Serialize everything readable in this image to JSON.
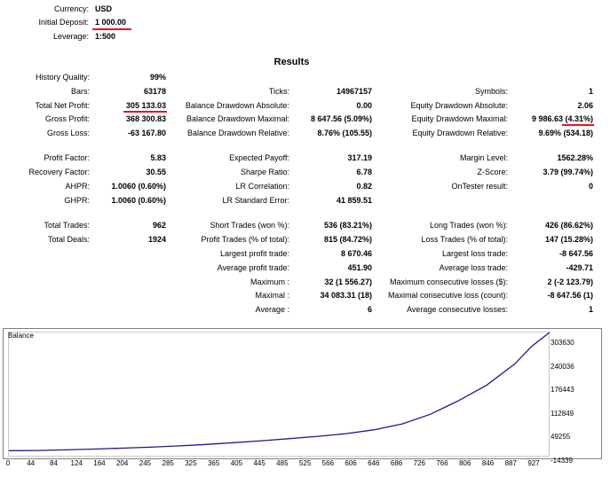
{
  "header": {
    "currency_label": "Currency:",
    "currency_value": "USD",
    "deposit_label": "Initial Deposit:",
    "deposit_value": "1 000.00",
    "leverage_label": "Leverage:",
    "leverage_value": "1:500"
  },
  "results_title": "Results",
  "col1": [
    {
      "label": "History Quality:",
      "value": "99%"
    },
    {
      "label": "Bars:",
      "value": "63178"
    },
    {
      "label": "Total Net Profit:",
      "value": "305 133.03"
    },
    {
      "label": "Gross Profit:",
      "value": "368 300.83"
    },
    {
      "label": "Gross Loss:",
      "value": "-63 167.80"
    },
    {
      "label": "Profit Factor:",
      "value": "5.83"
    },
    {
      "label": "Recovery Factor:",
      "value": "30.55"
    },
    {
      "label": "AHPR:",
      "value": "1.0060 (0.60%)"
    },
    {
      "label": "GHPR:",
      "value": "1.0060 (0.60%)"
    },
    {
      "label": "Total Trades:",
      "value": "962"
    },
    {
      "label": "Total Deals:",
      "value": "1924"
    }
  ],
  "col2": [
    {
      "label": "Ticks:",
      "value": "14967157"
    },
    {
      "label": "Balance Drawdown Absolute:",
      "value": "0.00"
    },
    {
      "label": "Balance Drawdown Maximal:",
      "value": "8 647.56 (5.09%)"
    },
    {
      "label": "Balance Drawdown Relative:",
      "value": "8.76% (105.55)"
    },
    {
      "label": "Expected Payoff:",
      "value": "317.19"
    },
    {
      "label": "Sharpe Ratio:",
      "value": "6.78"
    },
    {
      "label": "LR Correlation:",
      "value": "0.82"
    },
    {
      "label": "LR Standard Error:",
      "value": "41 859.51"
    },
    {
      "label": "Short Trades (won %):",
      "value": "536 (83.21%)"
    },
    {
      "label": "Profit Trades (% of total):",
      "value": "815 (84.72%)"
    },
    {
      "label": "Largest profit trade:",
      "value": "8 670.46"
    },
    {
      "label": "Average profit trade:",
      "value": "451.90"
    },
    {
      "label": "Maximum :",
      "value": "32 (1 556.27)"
    },
    {
      "label": "Maximal :",
      "value": "34 083.31 (18)"
    },
    {
      "label": "Average :",
      "value": "6"
    }
  ],
  "col3": [
    {
      "label": "Symbols:",
      "value": "1"
    },
    {
      "label": "Equity Drawdown Absolute:",
      "value": "2.06"
    },
    {
      "label": "Equity Drawdown Maximal:",
      "value": "9 986.63 (4.31%)"
    },
    {
      "label": "Equity Drawdown Relative:",
      "value": "9.69% (534.18)"
    },
    {
      "label": "Margin Level:",
      "value": "1562.28%"
    },
    {
      "label": "Z-Score:",
      "value": "3.79 (99.74%)"
    },
    {
      "label": "OnTester result:",
      "value": "0"
    },
    {
      "label": "Long Trades (won %):",
      "value": "426 (86.62%)"
    },
    {
      "label": "Loss Trades (% of total):",
      "value": "147 (15.28%)"
    },
    {
      "label": "Largest loss trade:",
      "value": "-8 647.56"
    },
    {
      "label": "Average loss trade:",
      "value": "-429.71"
    },
    {
      "label": "Maximum consecutive losses ($):",
      "value": "2 (-2 123.79)"
    },
    {
      "label": "Maximal consecutive loss (count):",
      "value": "-8 647.56 (1)"
    },
    {
      "label": "Average consecutive losses:",
      "value": "1"
    }
  ],
  "chart_data": {
    "type": "line",
    "title": "Balance",
    "xlabel": "",
    "ylabel": "",
    "xlim": [
      0,
      962
    ],
    "ylim": [
      -14339,
      303630
    ],
    "yticks": [
      "303630",
      "240036",
      "176443",
      "112849",
      "49255",
      "-14339"
    ],
    "xticks": [
      "0",
      "44",
      "84",
      "124",
      "164",
      "204",
      "245",
      "285",
      "325",
      "365",
      "405",
      "445",
      "485",
      "525",
      "566",
      "606",
      "646",
      "686",
      "726",
      "766",
      "806",
      "846",
      "887",
      "927"
    ],
    "x": [
      0,
      50,
      100,
      150,
      200,
      250,
      300,
      350,
      400,
      450,
      500,
      550,
      600,
      650,
      700,
      750,
      800,
      850,
      900,
      930,
      962
    ],
    "values": [
      1000,
      1500,
      3000,
      5000,
      7500,
      10000,
      13000,
      17000,
      21500,
      26500,
      32000,
      38000,
      45000,
      55000,
      70000,
      95000,
      130000,
      170000,
      225000,
      270000,
      306133
    ],
    "line_color": "#1a1a8c",
    "grid": false
  }
}
